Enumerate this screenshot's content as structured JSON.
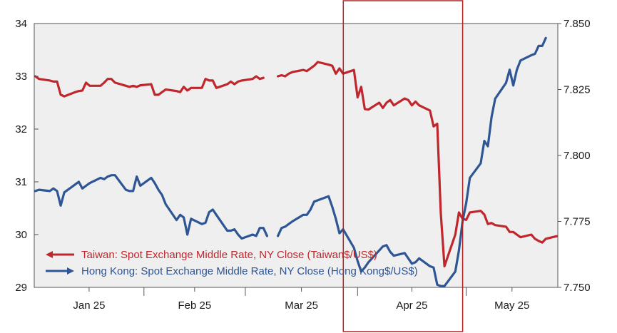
{
  "chart_data": {
    "type": "line",
    "title": "",
    "xlabel": "",
    "x_ticks": [
      "Jan 25",
      "Feb 25",
      "Mar 25",
      "Apr 25",
      "May 25"
    ],
    "y_left": {
      "ylim": [
        29,
        34
      ],
      "ticks": [
        "29",
        "30",
        "31",
        "32",
        "33",
        "34"
      ]
    },
    "y_right": {
      "ylim": [
        7.75,
        7.85
      ],
      "ticks": [
        "7.750",
        "7.775",
        "7.800",
        "7.825",
        "7.850"
      ]
    },
    "grid": false,
    "legend_placement": "bottom-left",
    "highlight": {
      "from": "2025-04-01",
      "to": "2025-05-01",
      "color": "#b22222"
    },
    "series": [
      {
        "name": "Taiwan: Spot Exchange Middle Rate, NY Close (Taiwan$/US$)",
        "axis": "left",
        "color": "#c0272d",
        "points": [
          [
            "2025-01-02",
            33.0
          ],
          [
            "2025-01-03",
            32.95
          ],
          [
            "2025-01-06",
            32.92
          ],
          [
            "2025-01-07",
            32.9
          ],
          [
            "2025-01-08",
            32.9
          ],
          [
            "2025-01-09",
            32.65
          ],
          [
            "2025-01-10",
            32.62
          ],
          [
            "2025-01-13",
            32.7
          ],
          [
            "2025-01-14",
            32.72
          ],
          [
            "2025-01-15",
            32.73
          ],
          [
            "2025-01-16",
            32.88
          ],
          [
            "2025-01-17",
            32.82
          ],
          [
            "2025-01-20",
            32.82
          ],
          [
            "2025-01-21",
            32.88
          ],
          [
            "2025-01-22",
            32.95
          ],
          [
            "2025-01-23",
            32.95
          ],
          [
            "2025-01-24",
            32.88
          ],
          [
            "2025-01-27",
            32.82
          ],
          [
            "2025-01-28",
            32.8
          ],
          [
            "2025-01-29",
            32.82
          ],
          [
            "2025-01-30",
            32.8
          ],
          [
            "2025-01-31",
            32.83
          ],
          [
            "2025-02-03",
            32.85
          ],
          [
            "2025-02-04",
            32.65
          ],
          [
            "2025-02-05",
            32.65
          ],
          [
            "2025-02-06",
            32.7
          ],
          [
            "2025-02-07",
            32.75
          ],
          [
            "2025-02-10",
            32.72
          ],
          [
            "2025-02-11",
            32.7
          ],
          [
            "2025-02-12",
            32.8
          ],
          [
            "2025-02-13",
            32.73
          ],
          [
            "2025-02-14",
            32.78
          ],
          [
            "2025-02-17",
            32.78
          ],
          [
            "2025-02-18",
            32.95
          ],
          [
            "2025-02-19",
            32.92
          ],
          [
            "2025-02-20",
            32.92
          ],
          [
            "2025-02-21",
            32.78
          ],
          [
            "2025-02-24",
            32.85
          ],
          [
            "2025-02-25",
            32.9
          ],
          [
            "2025-02-26",
            32.85
          ],
          [
            "2025-02-27",
            32.9
          ],
          [
            "2025-02-28",
            32.92
          ],
          [
            "2025-03-03",
            32.95
          ],
          [
            "2025-03-04",
            33.0
          ],
          [
            "2025-03-05",
            32.95
          ],
          [
            "2025-03-06",
            32.97
          ],
          null,
          [
            "2025-03-10",
            33.0
          ],
          [
            "2025-03-11",
            33.02
          ],
          [
            "2025-03-12",
            33.0
          ],
          [
            "2025-03-13",
            33.05
          ],
          [
            "2025-03-14",
            33.08
          ],
          [
            "2025-03-17",
            33.12
          ],
          [
            "2025-03-18",
            33.1
          ],
          [
            "2025-03-19",
            33.15
          ],
          [
            "2025-03-20",
            33.2
          ],
          [
            "2025-03-21",
            33.27
          ],
          [
            "2025-03-24",
            33.22
          ],
          [
            "2025-03-25",
            33.2
          ],
          [
            "2025-03-26",
            33.05
          ],
          [
            "2025-03-27",
            33.15
          ],
          [
            "2025-03-28",
            33.05
          ],
          [
            "2025-03-31",
            33.12
          ],
          [
            "2025-04-01",
            32.6
          ],
          [
            "2025-04-02",
            32.8
          ],
          [
            "2025-04-03",
            32.38
          ],
          [
            "2025-04-04",
            32.37
          ],
          [
            "2025-04-07",
            32.5
          ],
          [
            "2025-04-08",
            32.4
          ],
          [
            "2025-04-09",
            32.5
          ],
          [
            "2025-04-10",
            32.55
          ],
          [
            "2025-04-11",
            32.45
          ],
          [
            "2025-04-14",
            32.58
          ],
          [
            "2025-04-15",
            32.55
          ],
          [
            "2025-04-16",
            32.45
          ],
          [
            "2025-04-17",
            32.52
          ],
          [
            "2025-04-18",
            32.45
          ],
          [
            "2025-04-21",
            32.35
          ],
          [
            "2025-04-22",
            32.05
          ],
          [
            "2025-04-23",
            32.1
          ],
          [
            "2025-04-24",
            30.4
          ],
          [
            "2025-04-25",
            29.4
          ],
          [
            "2025-04-28",
            30.0
          ],
          [
            "2025-04-29",
            30.42
          ],
          [
            "2025-04-30",
            30.3
          ],
          [
            "2025-05-01",
            30.28
          ],
          [
            "2025-05-02",
            30.42
          ],
          [
            "2025-05-05",
            30.45
          ],
          [
            "2025-05-06",
            30.38
          ],
          [
            "2025-05-07",
            30.2
          ],
          [
            "2025-05-08",
            30.22
          ],
          [
            "2025-05-09",
            30.18
          ],
          [
            "2025-05-12",
            30.15
          ],
          [
            "2025-05-13",
            30.05
          ],
          [
            "2025-05-14",
            30.05
          ],
          [
            "2025-05-15",
            30.0
          ],
          [
            "2025-05-16",
            29.95
          ],
          [
            "2025-05-19",
            30.0
          ],
          [
            "2025-05-20",
            29.92
          ],
          [
            "2025-05-21",
            29.88
          ],
          [
            "2025-05-22",
            29.85
          ],
          [
            "2025-05-23",
            29.92
          ],
          [
            "2025-05-26",
            29.97
          ]
        ]
      },
      {
        "name": "Hong Kong: Spot Exchange Middle Rate, NY Close (Hong Kong$/US$)",
        "axis": "right",
        "color": "#2e5594",
        "points": [
          [
            "2025-01-02",
            7.7865
          ],
          [
            "2025-01-03",
            7.787
          ],
          [
            "2025-01-06",
            7.7865
          ],
          [
            "2025-01-07",
            7.7875
          ],
          [
            "2025-01-08",
            7.7865
          ],
          [
            "2025-01-09",
            7.781
          ],
          [
            "2025-01-10",
            7.786
          ],
          [
            "2025-01-13",
            7.789
          ],
          [
            "2025-01-14",
            7.79
          ],
          [
            "2025-01-15",
            7.7875
          ],
          [
            "2025-01-16",
            7.7885
          ],
          [
            "2025-01-17",
            7.7895
          ],
          [
            "2025-01-20",
            7.7915
          ],
          [
            "2025-01-21",
            7.791
          ],
          [
            "2025-01-22",
            7.792
          ],
          [
            "2025-01-23",
            7.7925
          ],
          [
            "2025-01-24",
            7.7925
          ],
          [
            "2025-01-27",
            7.787
          ],
          [
            "2025-01-28",
            7.7865
          ],
          [
            "2025-01-29",
            7.7865
          ],
          [
            "2025-01-30",
            7.792
          ],
          [
            "2025-01-31",
            7.7885
          ],
          [
            "2025-02-03",
            7.7915
          ],
          [
            "2025-02-04",
            7.7895
          ],
          [
            "2025-02-05",
            7.787
          ],
          [
            "2025-02-06",
            7.785
          ],
          [
            "2025-02-07",
            7.7815
          ],
          [
            "2025-02-10",
            7.7755
          ],
          [
            "2025-02-11",
            7.7775
          ],
          [
            "2025-02-12",
            7.7765
          ],
          [
            "2025-02-13",
            7.77
          ],
          [
            "2025-02-14",
            7.776
          ],
          [
            "2025-02-17",
            7.774
          ],
          [
            "2025-02-18",
            7.7745
          ],
          [
            "2025-02-19",
            7.7785
          ],
          [
            "2025-02-20",
            7.7795
          ],
          [
            "2025-02-21",
            7.7775
          ],
          [
            "2025-02-24",
            7.7715
          ],
          [
            "2025-02-25",
            7.7715
          ],
          [
            "2025-02-26",
            7.772
          ],
          [
            "2025-02-27",
            7.77
          ],
          [
            "2025-02-28",
            7.7685
          ],
          [
            "2025-03-03",
            7.77
          ],
          [
            "2025-03-04",
            7.7695
          ],
          [
            "2025-03-05",
            7.7725
          ],
          [
            "2025-03-06",
            7.7725
          ],
          [
            "2025-03-07",
            7.7695
          ],
          null,
          [
            "2025-03-10",
            7.7695
          ],
          [
            "2025-03-11",
            7.7725
          ],
          [
            "2025-03-12",
            7.773
          ],
          [
            "2025-03-13",
            7.774
          ],
          [
            "2025-03-14",
            7.775
          ],
          [
            "2025-03-17",
            7.7775
          ],
          [
            "2025-03-18",
            7.7775
          ],
          [
            "2025-03-19",
            7.7795
          ],
          [
            "2025-03-20",
            7.7825
          ],
          [
            "2025-03-21",
            7.783
          ],
          [
            "2025-03-24",
            7.7845
          ],
          [
            "2025-03-25",
            7.7805
          ],
          [
            "2025-03-26",
            7.776
          ],
          [
            "2025-03-27",
            7.7705
          ],
          [
            "2025-03-28",
            7.772
          ],
          [
            "2025-03-31",
            7.765
          ],
          [
            "2025-04-01",
            7.76
          ],
          [
            "2025-04-02",
            7.756
          ],
          [
            "2025-04-03",
            7.7575
          ],
          [
            "2025-04-04",
            7.7595
          ],
          [
            "2025-04-07",
            7.764
          ],
          [
            "2025-04-08",
            7.7655
          ],
          [
            "2025-04-09",
            7.766
          ],
          [
            "2025-04-10",
            7.7635
          ],
          [
            "2025-04-11",
            7.762
          ],
          [
            "2025-04-14",
            7.763
          ],
          [
            "2025-04-15",
            7.761
          ],
          [
            "2025-04-16",
            7.759
          ],
          [
            "2025-04-17",
            7.7595
          ],
          [
            "2025-04-18",
            7.761
          ],
          [
            "2025-04-21",
            7.758
          ],
          [
            "2025-04-22",
            7.7575
          ],
          [
            "2025-04-23",
            7.751
          ],
          [
            "2025-04-24",
            7.7505
          ],
          [
            "2025-04-25",
            7.7505
          ],
          [
            "2025-04-28",
            7.756
          ],
          [
            "2025-04-29",
            7.764
          ],
          [
            "2025-04-30",
            7.775
          ],
          [
            "2025-05-01",
            7.782
          ],
          [
            "2025-05-02",
            7.7915
          ],
          [
            "2025-05-05",
            7.797
          ],
          [
            "2025-05-06",
            7.8055
          ],
          [
            "2025-05-07",
            7.8035
          ],
          [
            "2025-05-08",
            7.8145
          ],
          [
            "2025-05-09",
            7.8215
          ],
          [
            "2025-05-12",
            7.8275
          ],
          [
            "2025-05-13",
            7.8325
          ],
          [
            "2025-05-14",
            7.8265
          ],
          [
            "2025-05-15",
            7.8325
          ],
          [
            "2025-05-16",
            7.836
          ],
          [
            "2025-05-19",
            7.838
          ],
          [
            "2025-05-20",
            7.8385
          ],
          [
            "2025-05-21",
            7.8415
          ],
          [
            "2025-05-22",
            7.8415
          ],
          [
            "2025-05-23",
            7.8445
          ]
        ]
      }
    ]
  }
}
